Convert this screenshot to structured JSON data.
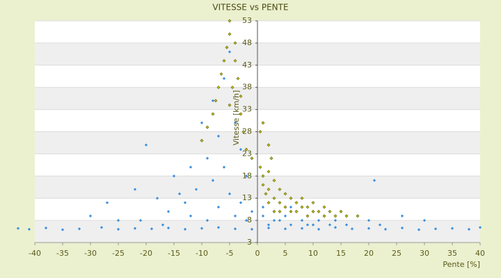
{
  "chart_data": {
    "type": "scatter",
    "title": "VITESSE vs PENTE",
    "x_label": "Pente [%]",
    "y_label": "Vitesse [km/h]",
    "xlim": [
      -40,
      40
    ],
    "ylim": [
      3,
      53
    ],
    "xticks": [
      -40,
      -35,
      -30,
      -25,
      -20,
      -15,
      -10,
      -5,
      0,
      5,
      10,
      15,
      20,
      25,
      30,
      35,
      40
    ],
    "yticks": [
      3,
      8,
      13,
      18,
      23,
      28,
      33,
      38,
      43,
      48,
      53
    ],
    "grid": true,
    "series": [
      {
        "color": "#3b8fdc",
        "x": [
          -43,
          -41,
          -38,
          -35,
          -32,
          -28,
          -25,
          -22,
          -19,
          -16,
          -13,
          -10,
          -7,
          -4,
          -1,
          2,
          5,
          8,
          11,
          14,
          17,
          20,
          23,
          26,
          29,
          32,
          35,
          38,
          40,
          -30,
          -27,
          -25,
          -22,
          -20,
          -18,
          -16,
          -15,
          -13,
          -12,
          -11,
          -10,
          -9,
          -8,
          -8,
          -7,
          -7,
          -6,
          -6,
          -5,
          -5,
          -4,
          -4,
          -3,
          -3,
          -2,
          -2,
          -1,
          -12,
          -17,
          -21,
          -14,
          -9,
          1,
          2,
          3,
          4,
          5,
          6,
          7,
          8,
          9,
          10,
          11,
          12,
          13,
          14,
          16,
          18,
          20,
          22,
          21,
          26,
          30,
          1,
          3,
          6,
          9
        ],
        "y": [
          6.2,
          6,
          6.3,
          5.9,
          6.1,
          6.4,
          6,
          6.2,
          6.1,
          6.3,
          6,
          6.2,
          6.4,
          6.1,
          6,
          6.3,
          6.1,
          6.2,
          6,
          6.4,
          6.1,
          6.2,
          6,
          6.3,
          5.9,
          6.1,
          6.2,
          6,
          6.4,
          9,
          12,
          8,
          15,
          25,
          13,
          10,
          18,
          12,
          20,
          15,
          30,
          22,
          17,
          35,
          11,
          27,
          40,
          20,
          46,
          14,
          30,
          9,
          24,
          12,
          18,
          8,
          10,
          9,
          7,
          8,
          14,
          8,
          9,
          7,
          10,
          8,
          9,
          7,
          10,
          8,
          9,
          7,
          8,
          9,
          7,
          8,
          7,
          9,
          8,
          7,
          17,
          9,
          8,
          11,
          8,
          11,
          7
        ]
      },
      {
        "color": "#b5b51e",
        "x": [
          -5,
          -5,
          -5.5,
          -6,
          -6.5,
          -7,
          -7.5,
          -8,
          -9,
          -10,
          -4,
          -4,
          -3.5,
          -3,
          -3,
          -2.5,
          -2,
          -4.5,
          -5,
          0.5,
          1,
          1,
          1.5,
          2,
          2,
          2,
          3,
          3,
          3,
          4,
          4,
          4,
          5,
          5,
          6,
          6,
          7,
          7,
          8,
          8,
          9,
          9,
          10,
          10,
          11,
          12,
          12,
          13,
          14,
          15,
          16,
          18,
          1,
          2,
          2.5,
          -1,
          0.5
        ],
        "y": [
          53,
          50,
          47,
          44,
          41,
          38,
          35,
          32,
          29,
          26,
          48,
          44,
          40,
          36,
          32,
          28,
          24,
          38,
          34,
          20,
          18,
          16,
          14,
          19,
          15,
          12,
          17,
          13,
          10,
          15,
          12,
          10,
          14,
          11,
          13,
          10,
          12,
          10,
          13,
          11,
          11,
          9,
          12,
          10,
          10,
          11,
          9,
          10,
          9,
          10,
          9,
          9,
          30,
          25,
          22,
          22,
          28
        ]
      }
    ]
  }
}
